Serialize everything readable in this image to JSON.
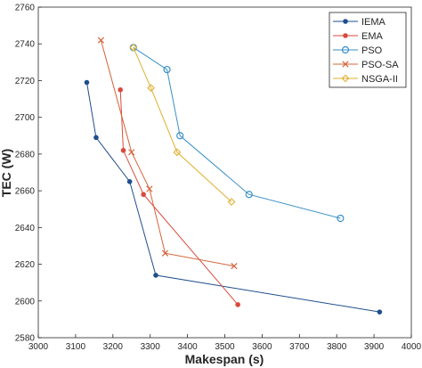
{
  "chart_data": {
    "type": "line",
    "title": "",
    "xlabel": "Makespan (s)",
    "ylabel": "TEC (W)",
    "xlim": [
      3000,
      4000
    ],
    "ylim": [
      2580,
      2760
    ],
    "xticks": [
      "3000",
      "3100",
      "3200",
      "3300",
      "3400",
      "3500",
      "3600",
      "3700",
      "3800",
      "3900",
      "4000"
    ],
    "yticks": [
      "2580",
      "2600",
      "2620",
      "2640",
      "2660",
      "2680",
      "2700",
      "2720",
      "2740",
      "2760"
    ],
    "grid": false,
    "legend_position": "top-right",
    "series": [
      {
        "name": "IEMA",
        "color": "#1f4e8c",
        "marker": "dot",
        "x": [
          3130,
          3155,
          3245,
          3315,
          3915
        ],
        "y": [
          2719,
          2689,
          2665,
          2614,
          2594
        ]
      },
      {
        "name": "EMA",
        "color": "#d94a3c",
        "marker": "dot",
        "x": [
          3220,
          3228,
          3282,
          3535
        ],
        "y": [
          2715,
          2682,
          2658,
          2598
        ]
      },
      {
        "name": "PSO",
        "color": "#3a8fc7",
        "marker": "circle",
        "x": [
          3255,
          3345,
          3380,
          3565,
          3810
        ],
        "y": [
          2738,
          2726,
          2690,
          2658,
          2645
        ]
      },
      {
        "name": "PSO-SA",
        "color": "#d4643a",
        "marker": "cross",
        "x": [
          3168,
          3250,
          3298,
          3340,
          3525
        ],
        "y": [
          2742,
          2681,
          2661,
          2626,
          2619
        ]
      },
      {
        "name": "NSGA-II",
        "color": "#e0b030",
        "marker": "diamond",
        "x": [
          3255,
          3302,
          3372,
          3518
        ],
        "y": [
          2738,
          2716,
          2681,
          2654
        ]
      }
    ]
  }
}
